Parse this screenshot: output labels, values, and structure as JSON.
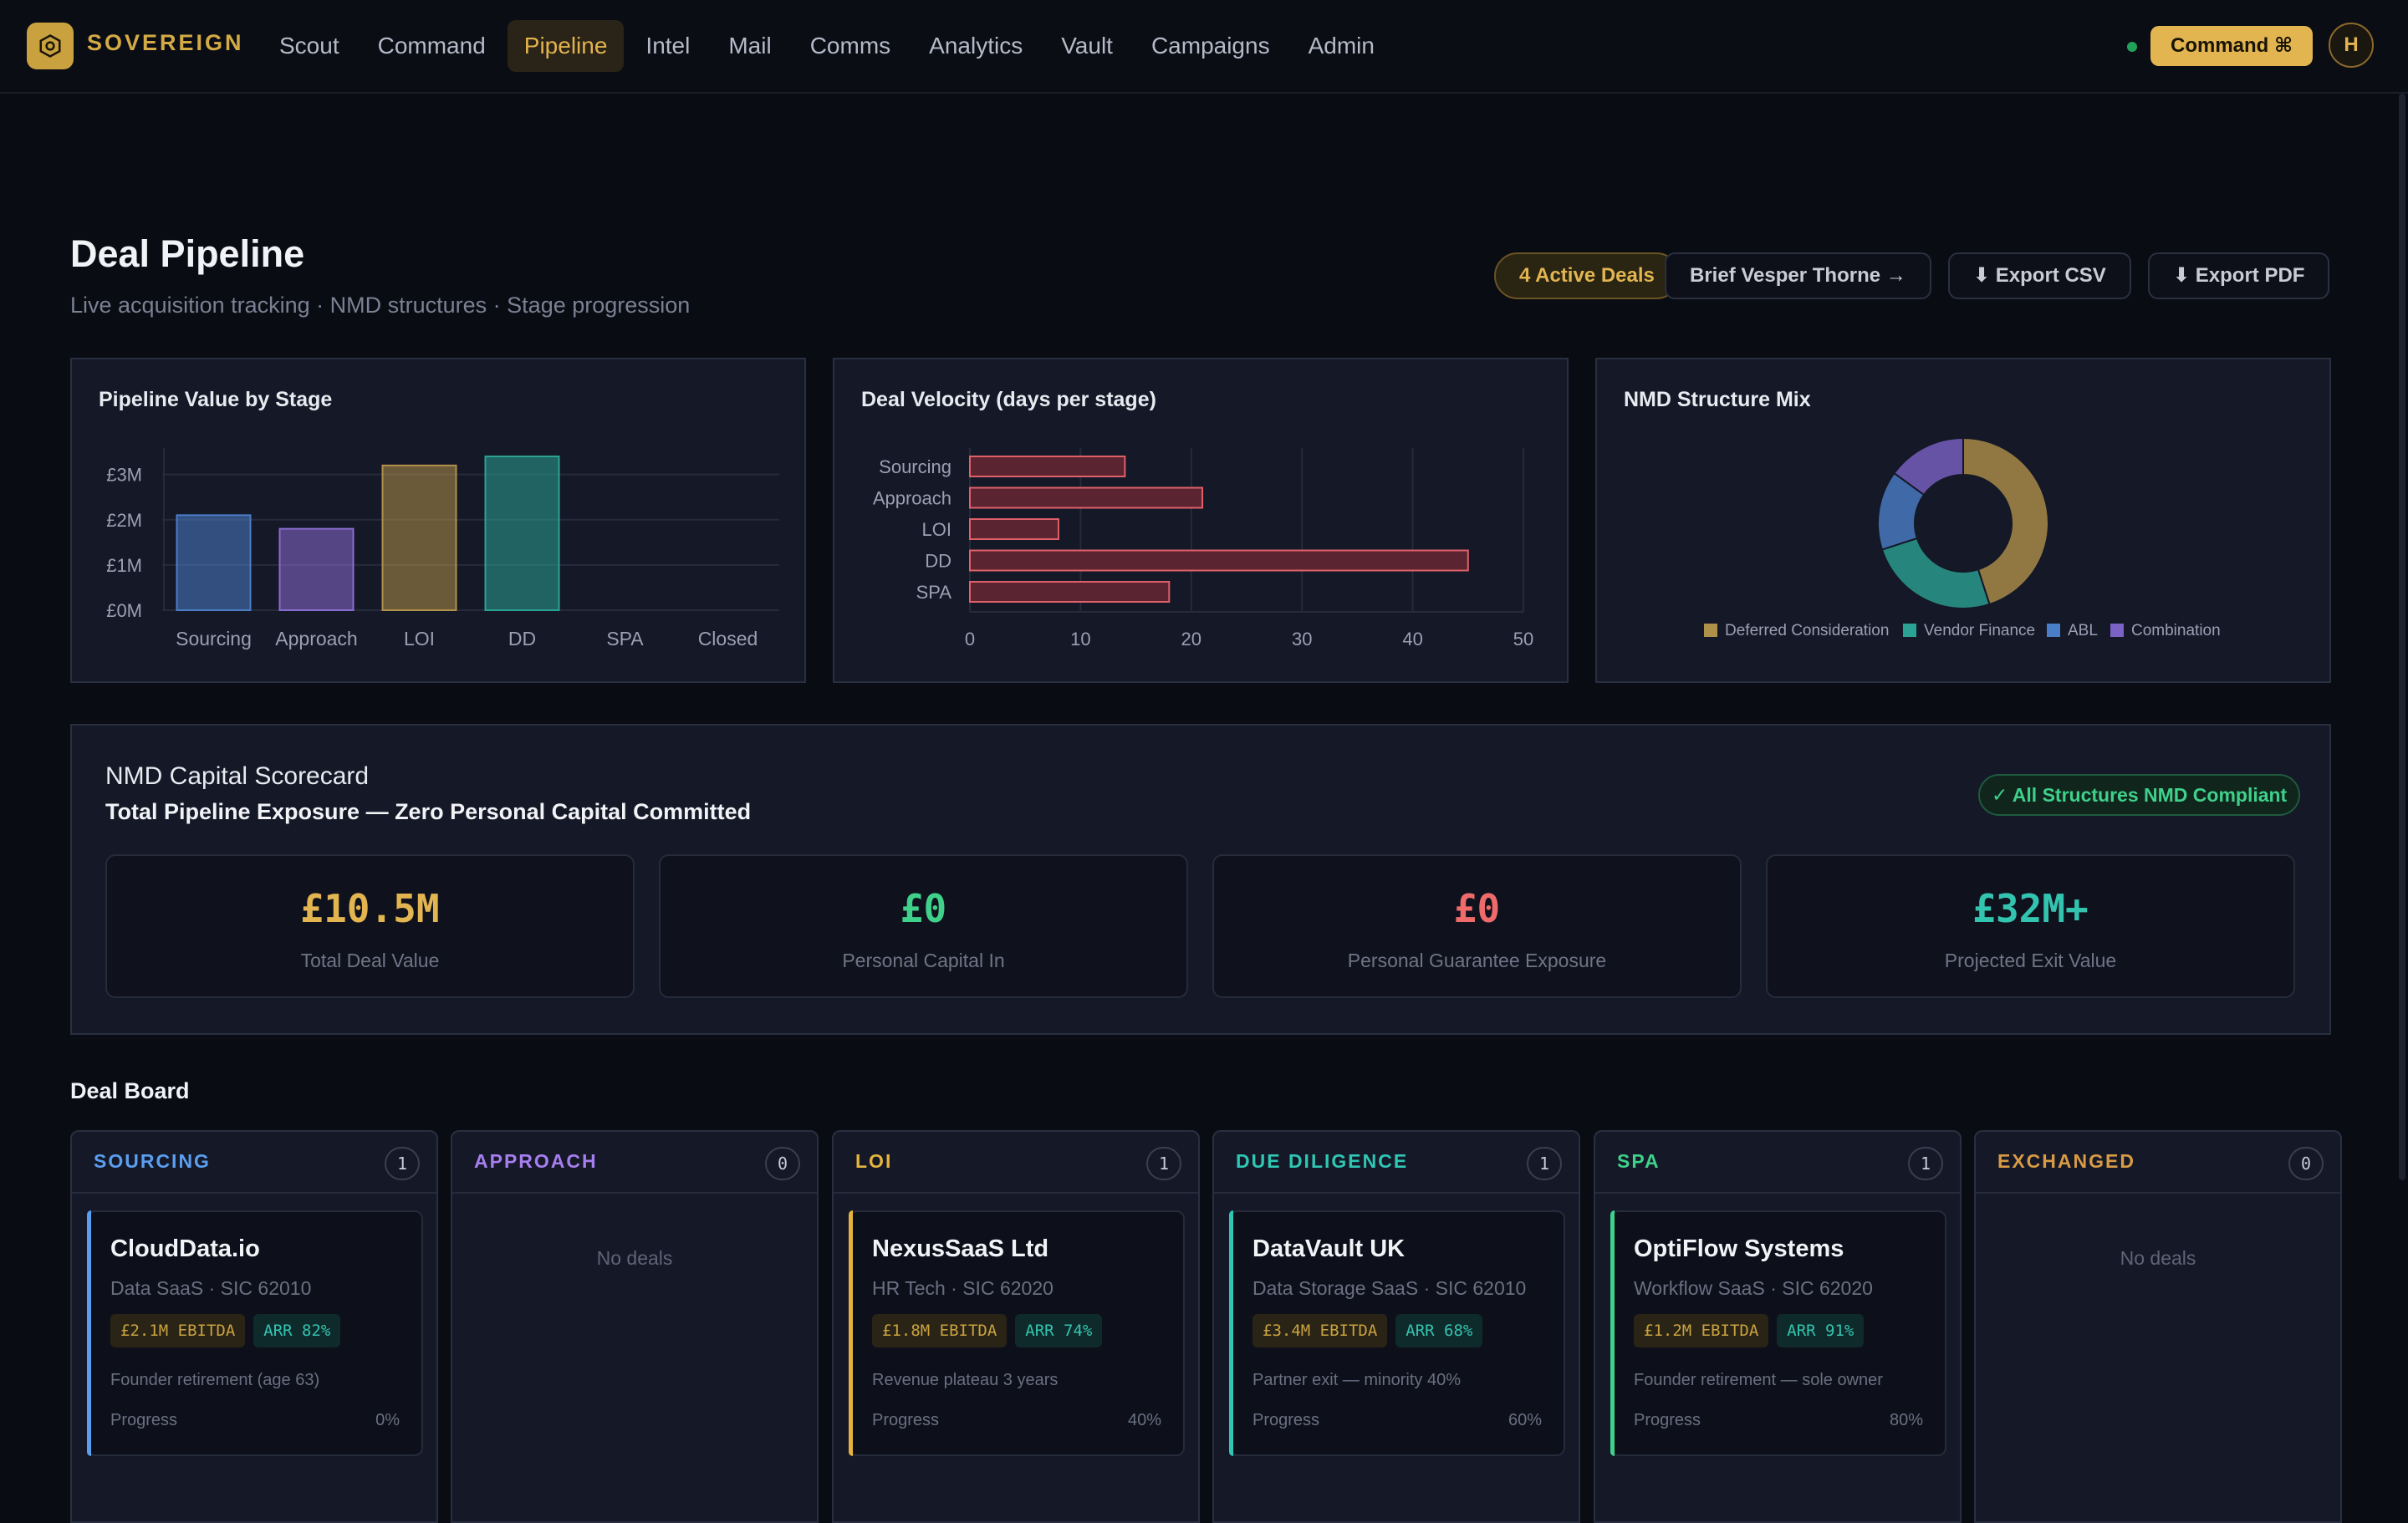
{
  "nav": {
    "brand": "SOVEREIGN",
    "items": [
      {
        "label": "Scout",
        "active": false
      },
      {
        "label": "Command",
        "active": false
      },
      {
        "label": "Pipeline",
        "active": true
      },
      {
        "label": "Intel",
        "active": false
      },
      {
        "label": "Mail",
        "active": false
      },
      {
        "label": "Comms",
        "active": false
      },
      {
        "label": "Analytics",
        "active": false
      },
      {
        "label": "Vault",
        "active": false
      },
      {
        "label": "Campaigns",
        "active": false
      },
      {
        "label": "Admin",
        "active": false
      }
    ],
    "command_label": "Command ⌘",
    "avatar_initial": "H"
  },
  "header": {
    "title": "Deal Pipeline",
    "subtitle": "Live acquisition tracking · NMD structures · Stage progression",
    "active_deals": "4 Active Deals",
    "brief_label": "Brief Vesper Thorne →",
    "export_csv": "⬇ Export CSV",
    "export_pdf": "⬇ Export PDF"
  },
  "chart_data": [
    {
      "type": "bar",
      "title": "Pipeline Value by Stage",
      "categories": [
        "Sourcing",
        "Approach",
        "LOI",
        "DD",
        "SPA",
        "Closed"
      ],
      "values": [
        2.1,
        1.8,
        3.2,
        3.4,
        0,
        0
      ],
      "colors": [
        "#4a7ec8",
        "#8a6cd1",
        "#b0914a",
        "#2aa394"
      ],
      "ylim": [
        0,
        3.4
      ],
      "yticks": [
        "£0M",
        "£1M",
        "£2M",
        "£3M"
      ],
      "grid": true
    },
    {
      "type": "bar",
      "orientation": "horizontal",
      "title": "Deal Velocity (days per stage)",
      "categories": [
        "Sourcing",
        "Approach",
        "LOI",
        "DD",
        "SPA"
      ],
      "values": [
        14,
        21,
        8,
        45,
        18
      ],
      "xlim": [
        0,
        50
      ],
      "xticks": [
        "0",
        "10",
        "20",
        "30",
        "40",
        "50"
      ],
      "color": "#e0606a",
      "grid": true
    },
    {
      "type": "pie",
      "title": "NMD Structure Mix",
      "donut": true,
      "labels": [
        "Deferred Consideration",
        "Vendor Finance",
        "ABL",
        "Combination"
      ],
      "values": [
        45,
        25,
        15,
        15
      ],
      "colors": [
        "#b0914a",
        "#2aa394",
        "#4a7ec8",
        "#7b63c6"
      ],
      "legend": "bottom"
    }
  ],
  "scorecard": {
    "label": "NMD Capital Scorecard",
    "title": "Total Pipeline Exposure — Zero Personal Capital Committed",
    "compliant": "✓ All Structures NMD Compliant",
    "stats": [
      {
        "value": "£10.5M",
        "label": "Total Deal Value",
        "color": "#e2b551"
      },
      {
        "value": "£0",
        "label": "Personal Capital In",
        "color": "#3fd08a"
      },
      {
        "value": "£0",
        "label": "Personal Guarantee Exposure",
        "color": "#ef6b6b"
      },
      {
        "value": "£32M+",
        "label": "Projected Exit Value",
        "color": "#33c4b0"
      }
    ]
  },
  "board": {
    "title": "Deal Board",
    "no_deals": "No deals",
    "progress_label": "Progress",
    "columns": [
      {
        "name": "SOURCING",
        "count": "1",
        "color": "#5b9ef0",
        "card": {
          "name": "CloudData.io",
          "sub": "Data SaaS · SIC 62010",
          "ebitda": "£2.1M EBITDA",
          "arr": "ARR 82%",
          "note": "Founder retirement (age 63)",
          "progress": "0%"
        }
      },
      {
        "name": "APPROACH",
        "count": "0",
        "color": "#a77ef0",
        "card": null
      },
      {
        "name": "LOI",
        "count": "1",
        "color": "#e6b43c",
        "card": {
          "name": "NexusSaaS Ltd",
          "sub": "HR Tech · SIC 62020",
          "ebitda": "£1.8M EBITDA",
          "arr": "ARR 74%",
          "note": "Revenue plateau 3 years",
          "progress": "40%"
        }
      },
      {
        "name": "DUE DILIGENCE",
        "count": "1",
        "color": "#2fc6b4",
        "card": {
          "name": "DataVault UK",
          "sub": "Data Storage SaaS · SIC 62010",
          "ebitda": "£3.4M EBITDA",
          "arr": "ARR 68%",
          "note": "Partner exit — minority 40%",
          "progress": "60%"
        }
      },
      {
        "name": "SPA",
        "count": "1",
        "color": "#3fd08a",
        "card": {
          "name": "OptiFlow Systems",
          "sub": "Workflow SaaS · SIC 62020",
          "ebitda": "£1.2M EBITDA",
          "arr": "ARR 91%",
          "note": "Founder retirement — sole owner",
          "progress": "80%"
        }
      },
      {
        "name": "EXCHANGED",
        "count": "0",
        "color": "#d89a45",
        "card": null
      }
    ]
  }
}
